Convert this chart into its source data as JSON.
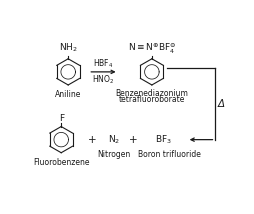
{
  "bg_color": "#ffffff",
  "fig_width": 2.54,
  "fig_height": 2.14,
  "dpi": 100,
  "aniline_label": "Aniline",
  "aniline_nh2": "NH$_2$",
  "diazonium_label1": "Benzenediazonium",
  "diazonium_label2": "tetrafluoroborate",
  "diazonium_formula": "N$\\equiv$N$^{\\oplus}$BF$_4^{\\ominus}$",
  "delta_label": "Δ",
  "fluorobenzene_label": "Fluorobenzene",
  "fluorobenzene_F": "F",
  "nitrogen_label": "Nitrogen",
  "nitrogen_formula": "N$_2$",
  "boron_label": "Boron trifluoride",
  "boron_formula": "BF$_3$",
  "plus_sign": "+",
  "text_color": "#1a1a1a",
  "line_color": "#1a1a1a",
  "font_size_label": 5.5,
  "font_size_formula": 6.5,
  "font_size_reagent": 5.5,
  "font_size_large": 7.5
}
